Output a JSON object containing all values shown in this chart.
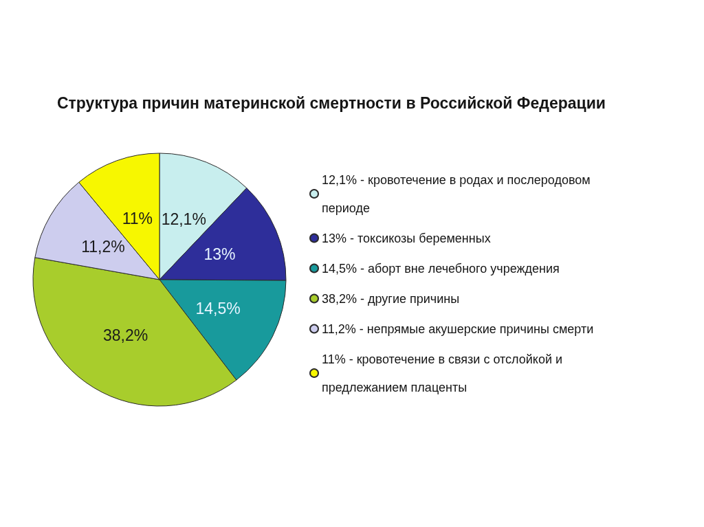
{
  "chart_data": {
    "type": "pie",
    "title": "Структура причин материнской смертности в Российской Федерации",
    "categories": [
      "12,1% - кровотечение в родах и послеродовом периоде",
      "13% - токсикозы беременных",
      "14,5% - аборт вне лечебного учреждения",
      "38,2% - другие причины",
      "11,2% - непрямые акушерские причины смерти",
      "11% - кровотечение в связи с отслойкой и предлежанием плаценты"
    ],
    "values": [
      12.1,
      13,
      14.5,
      38.2,
      11.2,
      11
    ],
    "colors": [
      "#c8eeee",
      "#2e2e9a",
      "#189a9c",
      "#a8cd2c",
      "#cdcdee",
      "#f7f700"
    ],
    "value_labels": [
      "12,1%",
      "13%",
      "14,5%",
      "38,2%",
      "11,2%",
      "11%"
    ],
    "legend": "right"
  }
}
